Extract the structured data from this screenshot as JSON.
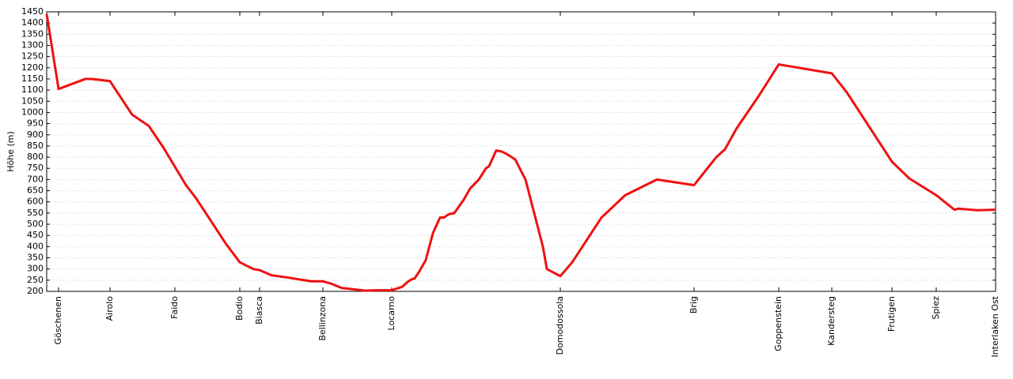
{
  "chart_data": {
    "type": "line",
    "y_label": "Höhe (m)",
    "x": [
      0,
      15,
      49,
      57,
      80,
      108,
      129,
      148,
      176,
      189,
      226,
      244,
      261,
      269,
      284,
      304,
      334,
      349,
      359,
      373,
      403,
      416,
      436,
      449,
      457,
      462,
      465,
      471,
      479,
      488,
      497,
      502,
      508,
      515,
      527,
      535,
      546,
      555,
      559,
      568,
      575,
      581,
      592,
      605,
      627,
      632,
      649,
      664,
      701,
      731,
      771,
      818,
      846,
      857,
      872,
      899,
      925,
      992,
      1011,
      1068,
      1090,
      1124,
      1147,
      1152,
      1176,
      1199
    ],
    "series": [
      {
        "name": "Höhe",
        "color": "#ee1111",
        "values": [
          1440,
          1105,
          1150,
          1150,
          1140,
          990,
          940,
          840,
          675,
          615,
          415,
          330,
          300,
          295,
          272,
          262,
          245,
          245,
          235,
          215,
          203,
          205,
          205,
          220,
          245,
          255,
          258,
          290,
          340,
          460,
          530,
          530,
          545,
          550,
          610,
          660,
          700,
          750,
          760,
          830,
          825,
          815,
          790,
          700,
          400,
          300,
          268,
          330,
          530,
          630,
          700,
          675,
          800,
          835,
          930,
          1070,
          1215,
          1175,
          1090,
          780,
          705,
          630,
          565,
          570,
          563,
          565
        ]
      }
    ],
    "stations": [
      {
        "name": "Göschenen",
        "x": 15
      },
      {
        "name": "Airolo",
        "x": 80
      },
      {
        "name": "Faido",
        "x": 162
      },
      {
        "name": "Bodio",
        "x": 244
      },
      {
        "name": "Biasca",
        "x": 269
      },
      {
        "name": "Bellinzona",
        "x": 349
      },
      {
        "name": "Locarno",
        "x": 436
      },
      {
        "name": "Domodossola",
        "x": 649
      },
      {
        "name": "Brig",
        "x": 818
      },
      {
        "name": "Goppenstein",
        "x": 925
      },
      {
        "name": "Kandersteg",
        "x": 992
      },
      {
        "name": "Frutigen",
        "x": 1068
      },
      {
        "name": "Spiez",
        "x": 1124
      },
      {
        "name": "Interlaken Ost",
        "x": 1199
      }
    ],
    "xlim": [
      0,
      1199
    ],
    "ylim": [
      200,
      1450
    ],
    "yticks": [
      200,
      250,
      300,
      350,
      400,
      450,
      500,
      550,
      600,
      650,
      700,
      750,
      800,
      850,
      900,
      950,
      1000,
      1050,
      1100,
      1150,
      1200,
      1250,
      1300,
      1350,
      1400,
      1450
    ],
    "grid": true
  }
}
